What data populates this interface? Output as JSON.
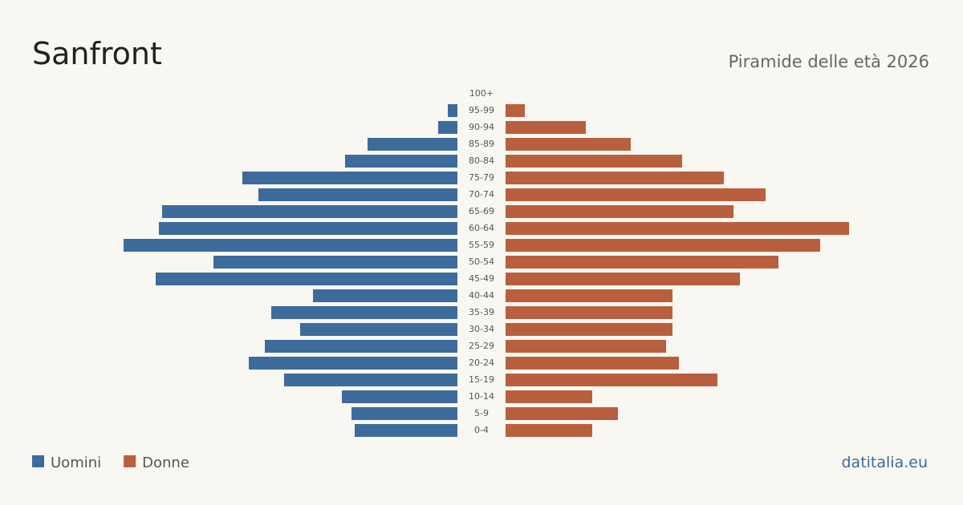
{
  "chart_data": {
    "type": "pyramid",
    "title": "Sanfront",
    "subtitle": "Piramide delle età 2026",
    "source": "datitalia.eu",
    "categories": [
      "100+",
      "95-99",
      "90-94",
      "85-89",
      "80-84",
      "75-79",
      "70-74",
      "65-69",
      "60-64",
      "55-59",
      "50-54",
      "45-49",
      "40-44",
      "35-39",
      "30-34",
      "25-29",
      "20-24",
      "15-19",
      "10-14",
      "5-9",
      "0-4"
    ],
    "series": [
      {
        "name": "Uomini",
        "color": "#3d6b9b",
        "values": [
          0,
          3,
          6,
          28,
          35,
          67,
          62,
          92,
          93,
          104,
          76,
          94,
          45,
          58,
          49,
          60,
          65,
          54,
          36,
          33,
          32
        ]
      },
      {
        "name": "Donne",
        "color": "#b95f3e",
        "values": [
          0,
          6,
          25,
          39,
          55,
          68,
          81,
          71,
          107,
          98,
          85,
          73,
          52,
          52,
          52,
          50,
          54,
          66,
          27,
          35,
          27
        ]
      }
    ]
  }
}
